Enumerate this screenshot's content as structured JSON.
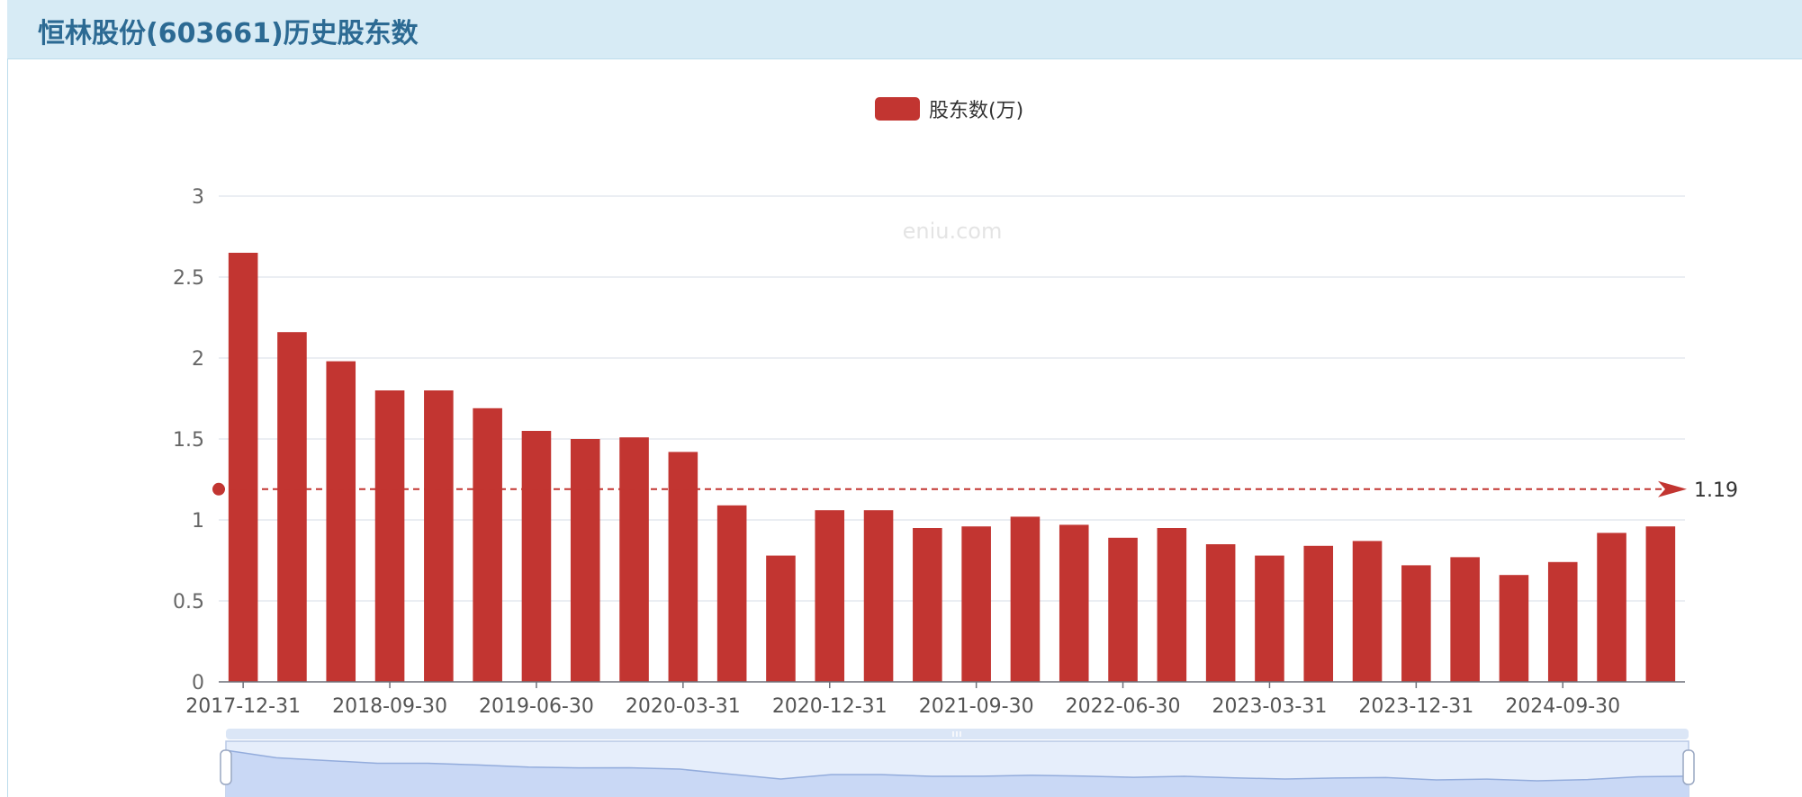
{
  "header": {
    "title": "恒林股份(603661)历史股东数"
  },
  "watermark": "eniu.com",
  "chart_data": {
    "type": "bar",
    "legend": {
      "label": "股东数(万)",
      "position": "top-center"
    },
    "categories": [
      "2017-12-31",
      "2018-03-31",
      "2018-06-30",
      "2018-09-30",
      "2018-12-31",
      "2019-03-31",
      "2019-06-30",
      "2019-09-30",
      "2019-12-31",
      "2020-03-31",
      "2020-06-30",
      "2020-09-30",
      "2020-12-31",
      "2021-03-31",
      "2021-06-30",
      "2021-09-30",
      "2021-12-31",
      "2022-03-31",
      "2022-06-30",
      "2022-09-30",
      "2022-12-31",
      "2023-03-31",
      "2023-06-30",
      "2023-09-30",
      "2023-12-31",
      "2024-03-31",
      "2024-06-30",
      "2024-09-30",
      "2024-12-31",
      "2025-03-31"
    ],
    "tick_labels": [
      "2017-12-31",
      "2018-09-30",
      "2019-06-30",
      "2020-03-31",
      "2020-12-31",
      "2021-09-30",
      "2022-06-30",
      "2023-03-31",
      "2023-12-31",
      "2024-09-30"
    ],
    "series": [
      {
        "name": "股东数(万)",
        "color": "#c23531",
        "values": [
          2.65,
          2.16,
          1.98,
          1.8,
          1.8,
          1.69,
          1.55,
          1.5,
          1.51,
          1.42,
          1.09,
          0.78,
          1.06,
          1.06,
          0.95,
          0.96,
          1.02,
          0.97,
          0.89,
          0.95,
          0.85,
          0.78,
          0.84,
          0.87,
          0.72,
          0.77,
          0.66,
          0.74,
          0.92,
          0.96
        ]
      }
    ],
    "y_ticks": [
      "0",
      "0.5",
      "1",
      "1.5",
      "2",
      "2.5",
      "3"
    ],
    "ylim": [
      0,
      3
    ],
    "grid": true,
    "average_line": {
      "value": 1.19,
      "label": "1.19",
      "color": "#c23531"
    },
    "data_zoom": {
      "start": 0,
      "end": 100
    }
  }
}
